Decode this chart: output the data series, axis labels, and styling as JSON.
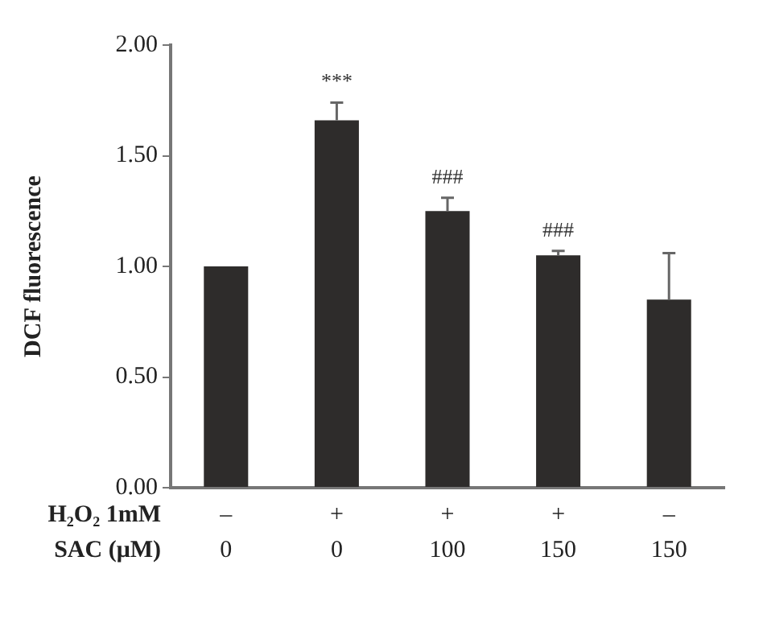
{
  "chart_data": {
    "type": "bar",
    "ylabel": "DCF fluorescence",
    "categories": [
      "–\n0",
      "+\n0",
      "+\n100",
      "+\n150",
      "–\n150"
    ],
    "values": [
      1.0,
      1.66,
      1.25,
      1.05,
      0.85
    ],
    "errors": [
      null,
      [
        1.66,
        1.74
      ],
      [
        1.25,
        1.31
      ],
      [
        1.05,
        1.07
      ],
      [
        0.85,
        1.06
      ]
    ],
    "color": "#2e2c2b",
    "ylim": [
      0,
      2
    ],
    "yticks": [
      {
        "value": 0,
        "label": "0.00"
      },
      {
        "value": 0.5,
        "label": "0.50"
      },
      {
        "value": 1,
        "label": "1.00"
      },
      {
        "value": 1.5,
        "label": "1.50"
      },
      {
        "value": 2,
        "label": "2.00"
      }
    ],
    "annotations": [
      "H₂O₂ 1mM",
      "SAC (μM)",
      {
        "text": "***",
        "x": "+\n0",
        "y": 1.74
      },
      {
        "text": "###",
        "x": "+\n100",
        "y": 1.31
      },
      {
        "text": "###",
        "x": "+\n150",
        "y": 1.07
      }
    ],
    "grid": false,
    "legend": false
  }
}
